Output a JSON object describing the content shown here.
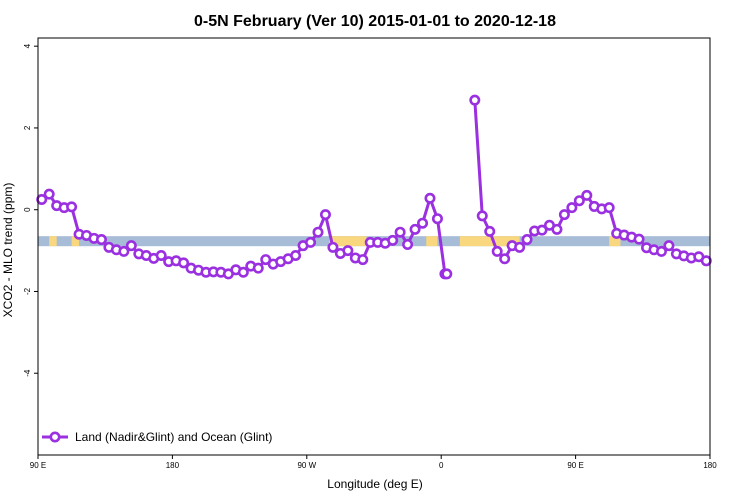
{
  "chart_data": {
    "type": "line",
    "title": "0-5N February (Ver 10)   2015-01-01 to 2020-12-18",
    "xlabel": "Longitude (deg E)",
    "ylabel": "XCO2 - MLO trend (ppm)",
    "xlim": [
      90,
      270
    ],
    "ylim": [
      -6,
      4.2
    ],
    "x_ticks": [
      {
        "value": 90,
        "label": "90 E"
      },
      {
        "value": 126,
        "label": "180"
      },
      {
        "value": 162,
        "label": "90 W"
      },
      {
        "value": 198,
        "label": "0"
      },
      {
        "value": 234,
        "label": "90 E"
      },
      {
        "value": 270,
        "label": "180"
      }
    ],
    "y_ticks": [
      {
        "value": 4,
        "label": "4"
      },
      {
        "value": 2,
        "label": "2"
      },
      {
        "value": 0,
        "label": "0"
      },
      {
        "value": -2,
        "label": "-2"
      },
      {
        "value": -4,
        "label": "-4"
      }
    ],
    "grid": false,
    "legend_position": "bottom-left",
    "series": [
      {
        "name": "Land (Nadir&Glint) and Ocean (Glint)",
        "color": "#9b30e0",
        "segments": [
          {
            "x": [
              91,
              93,
              95,
              97,
              99,
              101,
              103,
              105,
              107,
              109,
              111,
              113,
              115,
              117,
              119,
              121,
              123,
              125,
              127,
              129,
              131,
              133,
              135,
              137,
              139,
              141,
              143,
              145,
              147,
              149,
              151,
              153,
              155,
              157,
              159,
              161,
              163,
              165,
              167,
              169,
              171,
              173,
              175,
              177,
              179,
              181,
              183,
              185,
              187,
              189,
              191,
              193,
              195,
              197,
              199
            ],
            "y": [
              0.25,
              0.38,
              0.1,
              0.05,
              0.07,
              -0.6,
              -0.63,
              -0.7,
              -0.73,
              -0.92,
              -0.98,
              -1.02,
              -0.88,
              -1.08,
              -1.12,
              -1.19,
              -1.12,
              -1.27,
              -1.25,
              -1.3,
              -1.43,
              -1.48,
              -1.53,
              -1.52,
              -1.53,
              -1.57,
              -1.47,
              -1.53,
              -1.38,
              -1.43,
              -1.22,
              -1.33,
              -1.27,
              -1.2,
              -1.12,
              -0.88,
              -0.8,
              -0.55,
              -0.12,
              -0.92,
              -1.07,
              -1.0,
              -1.18,
              -1.22,
              -0.8,
              -0.8,
              -0.82,
              -0.75,
              -0.55,
              -0.85,
              -0.48,
              -0.33,
              0.28,
              -0.22,
              -1.57
            ]
          },
          {
            "x": [
              199.5
            ],
            "y": [
              -1.57
            ]
          },
          {
            "x": [
              207,
              209,
              211,
              213,
              215,
              217,
              219,
              221,
              223,
              225,
              227,
              229,
              231,
              233,
              235,
              237,
              239,
              241,
              243,
              245,
              247,
              249,
              251,
              253,
              255,
              257,
              259,
              261,
              263,
              265,
              267,
              269
            ],
            "y": [
              2.68,
              -0.15,
              -0.53,
              -1.02,
              -1.2,
              -0.88,
              -0.92,
              -0.73,
              -0.52,
              -0.5,
              -0.38,
              -0.48,
              -0.12,
              0.05,
              0.22,
              0.35,
              0.08,
              0.02,
              0.05,
              -0.58,
              -0.62,
              -0.67,
              -0.72,
              -0.93,
              -0.98,
              -1.02,
              -0.88,
              -1.08,
              -1.13,
              -1.18,
              -1.15,
              -1.25
            ]
          }
        ]
      }
    ],
    "surface_band": {
      "y_center": -0.77,
      "colors": {
        "ocean": "#a7bcd6",
        "land": "#f8d77e"
      },
      "land_ranges": [
        [
          93,
          95
        ],
        [
          99,
          101
        ],
        [
          168,
          178
        ],
        [
          194,
          197
        ],
        [
          203,
          219
        ],
        [
          243,
          246
        ]
      ]
    }
  }
}
